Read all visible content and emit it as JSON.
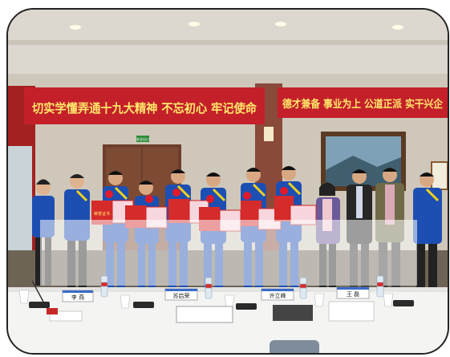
{
  "banner_left": "切实学懂弄通十九大精神  不忘初心  牢记使命",
  "banner_right": "德才兼备  事业为上  公道正派  实干兴企",
  "exit_sign": "安全出口",
  "certificate_label": "荣誉证书",
  "name_cards": [
    "李 燕",
    "苏启荣",
    "许立峰",
    "王 磊"
  ],
  "colors": {
    "banner": "#c4202a",
    "banner_text": "#ffe86a",
    "uniform": "#1d4fb3",
    "uniform_stripe": "#f0d21c",
    "tablecloth": "#f4f4f2",
    "skirt": "#ffffff"
  }
}
